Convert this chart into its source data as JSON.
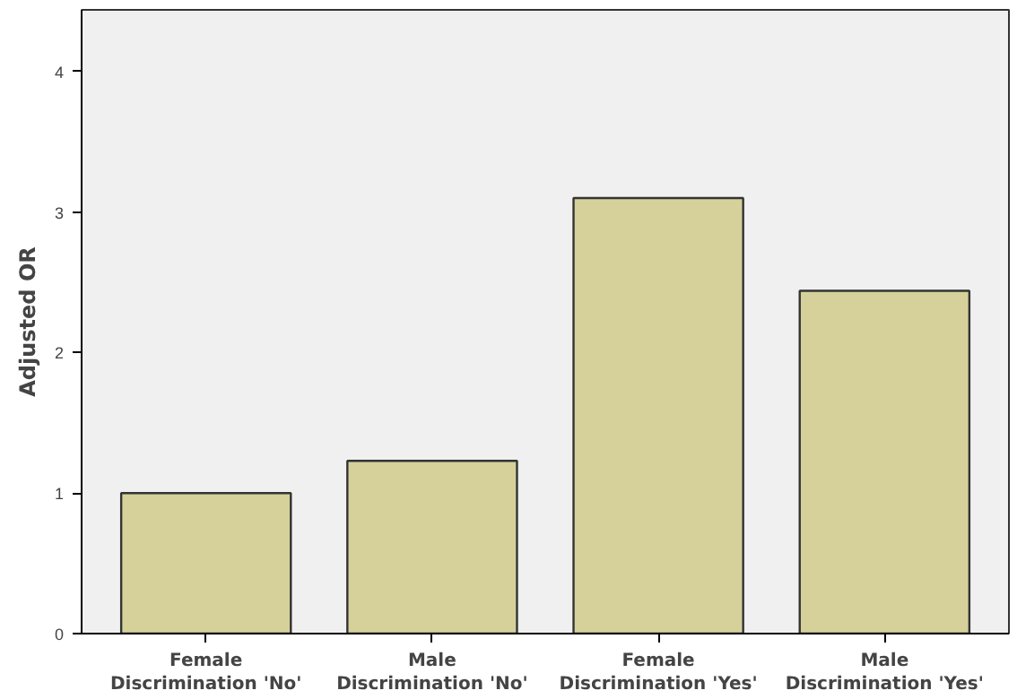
{
  "chart_data": {
    "type": "bar",
    "ylabel": "Adjusted OR",
    "categories": [
      "Female\nDiscrimination 'No'",
      "Male\nDiscrimination 'No'",
      "Female\nDiscrimination 'Yes'",
      "Male\nDiscrimination 'Yes'"
    ],
    "values": [
      1.0,
      1.23,
      3.1,
      2.44
    ],
    "color": "#d6d19b",
    "ylim": [
      0,
      4.44
    ],
    "yticks": [
      0,
      1,
      2,
      3,
      4
    ],
    "grid": false
  }
}
